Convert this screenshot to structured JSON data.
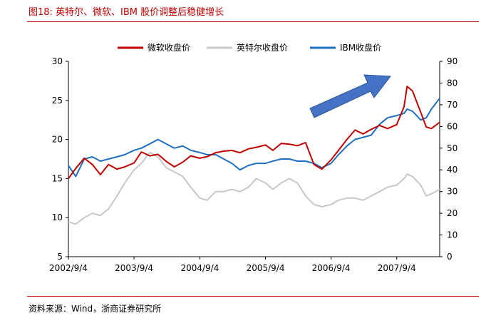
{
  "figure": {
    "title": "图18:   英特尔、微软、IBM 股价调整后稳健增长",
    "source": "资料来源：Wind，浙商证券研究所"
  },
  "chart_data": {
    "type": "line",
    "legend_position": "top-center",
    "grid": false,
    "x_ticks": [
      "2002/9/4",
      "2003/9/4",
      "2004/9/4",
      "2005/9/4",
      "2006/9/4",
      "2007/9/4"
    ],
    "xlim": [
      "2002/9/4",
      "2008/4/30"
    ],
    "left_axis": {
      "ylim": [
        5,
        30
      ],
      "ticks": [
        5,
        10,
        15,
        20,
        25,
        30
      ]
    },
    "right_axis": {
      "ylim": [
        0,
        90
      ],
      "ticks": [
        0,
        10,
        20,
        30,
        40,
        50,
        60,
        70,
        80,
        90
      ]
    },
    "colors": {
      "msft": "#c00000",
      "intc": "#c8c8c8",
      "ibm": "#1f6fc0",
      "arrow": "#4472c4",
      "arrow_border": "#2f5597",
      "rule": "#c00000"
    },
    "annotations": [
      {
        "kind": "arrow",
        "meaning": "upward trend"
      }
    ],
    "series": [
      {
        "name": "微软收盘价",
        "axis": "left",
        "color": "#c00000",
        "points": [
          [
            "2002/9/4",
            15.0
          ],
          [
            "2002/10/15",
            16.3
          ],
          [
            "2002/12/1",
            17.6
          ],
          [
            "2003/1/15",
            16.8
          ],
          [
            "2003/3/1",
            15.5
          ],
          [
            "2003/4/15",
            16.8
          ],
          [
            "2003/6/1",
            16.2
          ],
          [
            "2003/7/15",
            16.5
          ],
          [
            "2003/9/4",
            17.0
          ],
          [
            "2003/10/15",
            18.4
          ],
          [
            "2003/12/1",
            17.9
          ],
          [
            "2004/1/15",
            18.1
          ],
          [
            "2004/3/1",
            17.2
          ],
          [
            "2004/4/15",
            16.5
          ],
          [
            "2004/6/1",
            17.1
          ],
          [
            "2004/7/15",
            17.9
          ],
          [
            "2004/9/4",
            17.6
          ],
          [
            "2004/10/15",
            17.8
          ],
          [
            "2004/12/1",
            18.3
          ],
          [
            "2005/1/15",
            18.5
          ],
          [
            "2005/3/1",
            18.6
          ],
          [
            "2005/4/15",
            18.3
          ],
          [
            "2005/6/1",
            18.8
          ],
          [
            "2005/7/15",
            19.0
          ],
          [
            "2005/9/4",
            19.3
          ],
          [
            "2005/10/15",
            18.6
          ],
          [
            "2005/12/1",
            19.5
          ],
          [
            "2006/1/15",
            19.4
          ],
          [
            "2006/3/1",
            19.2
          ],
          [
            "2006/4/15",
            19.6
          ],
          [
            "2006/6/1",
            16.8
          ],
          [
            "2006/7/15",
            16.2
          ],
          [
            "2006/9/4",
            17.4
          ],
          [
            "2006/10/15",
            18.6
          ],
          [
            "2006/12/1",
            20.0
          ],
          [
            "2007/1/15",
            21.2
          ],
          [
            "2007/3/1",
            20.7
          ],
          [
            "2007/4/15",
            21.3
          ],
          [
            "2007/6/1",
            21.8
          ],
          [
            "2007/7/15",
            21.4
          ],
          [
            "2007/9/4",
            21.9
          ],
          [
            "2007/10/15",
            24.2
          ],
          [
            "2007/11/1",
            26.8
          ],
          [
            "2007/12/1",
            26.2
          ],
          [
            "2008/1/15",
            23.5
          ],
          [
            "2008/2/15",
            21.6
          ],
          [
            "2008/3/15",
            21.4
          ],
          [
            "2008/4/30",
            22.2
          ]
        ]
      },
      {
        "name": "英特尔收盘价",
        "axis": "right",
        "color": "#c8c8c8",
        "points": [
          [
            "2002/9/4",
            16
          ],
          [
            "2002/10/15",
            15
          ],
          [
            "2002/12/1",
            18
          ],
          [
            "2003/1/15",
            20
          ],
          [
            "2003/3/1",
            19
          ],
          [
            "2003/4/15",
            22
          ],
          [
            "2003/6/1",
            28
          ],
          [
            "2003/7/15",
            34
          ],
          [
            "2003/9/4",
            40
          ],
          [
            "2003/10/15",
            43
          ],
          [
            "2003/12/1",
            48
          ],
          [
            "2004/1/15",
            46
          ],
          [
            "2004/3/1",
            41
          ],
          [
            "2004/4/15",
            39
          ],
          [
            "2004/6/1",
            37
          ],
          [
            "2004/7/15",
            32
          ],
          [
            "2004/9/4",
            27
          ],
          [
            "2004/10/15",
            26
          ],
          [
            "2004/12/1",
            30
          ],
          [
            "2005/1/15",
            30
          ],
          [
            "2005/3/1",
            31
          ],
          [
            "2005/4/15",
            30
          ],
          [
            "2005/6/1",
            32
          ],
          [
            "2005/7/15",
            36
          ],
          [
            "2005/9/4",
            34
          ],
          [
            "2005/10/15",
            31
          ],
          [
            "2005/12/1",
            34
          ],
          [
            "2006/1/15",
            36
          ],
          [
            "2006/3/1",
            34
          ],
          [
            "2006/4/15",
            28
          ],
          [
            "2006/6/1",
            24
          ],
          [
            "2006/7/15",
            23
          ],
          [
            "2006/9/4",
            24
          ],
          [
            "2006/10/15",
            26
          ],
          [
            "2006/12/1",
            27
          ],
          [
            "2007/1/15",
            27
          ],
          [
            "2007/3/1",
            26
          ],
          [
            "2007/4/15",
            28
          ],
          [
            "2007/6/1",
            30
          ],
          [
            "2007/7/15",
            32
          ],
          [
            "2007/9/4",
            33
          ],
          [
            "2007/10/15",
            36
          ],
          [
            "2007/11/1",
            38
          ],
          [
            "2007/12/1",
            37
          ],
          [
            "2008/1/15",
            33
          ],
          [
            "2008/2/15",
            28
          ],
          [
            "2008/3/15",
            29
          ],
          [
            "2008/4/30",
            31
          ]
        ]
      },
      {
        "name": "IBM收盘价",
        "axis": "right",
        "color": "#1f6fc0",
        "points": [
          [
            "2002/9/4",
            42
          ],
          [
            "2002/10/15",
            37
          ],
          [
            "2002/12/1",
            45
          ],
          [
            "2003/1/15",
            46
          ],
          [
            "2003/3/1",
            44
          ],
          [
            "2003/4/15",
            45
          ],
          [
            "2003/6/1",
            46
          ],
          [
            "2003/7/15",
            47
          ],
          [
            "2003/9/4",
            49
          ],
          [
            "2003/10/15",
            50
          ],
          [
            "2003/12/1",
            52
          ],
          [
            "2004/1/15",
            54
          ],
          [
            "2004/3/1",
            52
          ],
          [
            "2004/4/15",
            50
          ],
          [
            "2004/6/1",
            51
          ],
          [
            "2004/7/15",
            49
          ],
          [
            "2004/9/4",
            48
          ],
          [
            "2004/10/15",
            47
          ],
          [
            "2004/12/1",
            47
          ],
          [
            "2005/1/15",
            45
          ],
          [
            "2005/3/1",
            43
          ],
          [
            "2005/4/15",
            40
          ],
          [
            "2005/6/1",
            42
          ],
          [
            "2005/7/15",
            43
          ],
          [
            "2005/9/4",
            43
          ],
          [
            "2005/10/15",
            44
          ],
          [
            "2005/12/1",
            45
          ],
          [
            "2006/1/15",
            45
          ],
          [
            "2006/3/1",
            44
          ],
          [
            "2006/4/15",
            44
          ],
          [
            "2006/6/1",
            43
          ],
          [
            "2006/7/15",
            41
          ],
          [
            "2006/9/4",
            43
          ],
          [
            "2006/10/15",
            47
          ],
          [
            "2006/12/1",
            51
          ],
          [
            "2007/1/15",
            54
          ],
          [
            "2007/3/1",
            55
          ],
          [
            "2007/4/15",
            56
          ],
          [
            "2007/6/1",
            61
          ],
          [
            "2007/7/15",
            64
          ],
          [
            "2007/9/4",
            65
          ],
          [
            "2007/10/15",
            66
          ],
          [
            "2007/11/1",
            68
          ],
          [
            "2007/12/1",
            67
          ],
          [
            "2008/1/15",
            63
          ],
          [
            "2008/2/15",
            64
          ],
          [
            "2008/3/15",
            68
          ],
          [
            "2008/4/30",
            73
          ]
        ]
      }
    ]
  }
}
